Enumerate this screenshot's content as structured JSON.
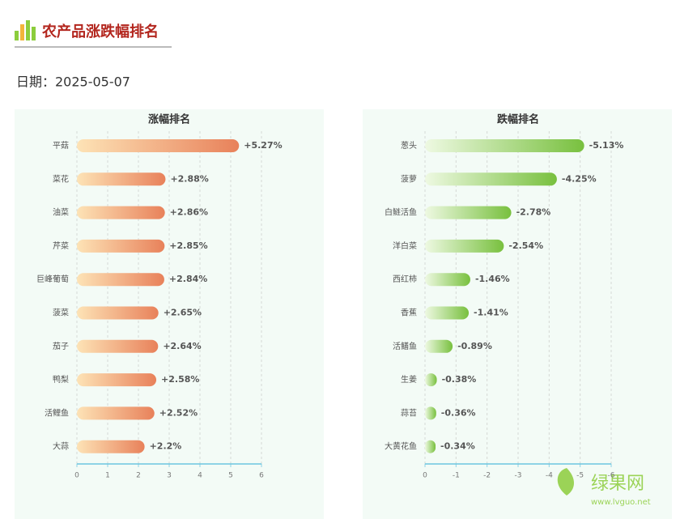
{
  "header": {
    "title": "农产品涨跌幅排名",
    "date": "日期：2025-05-07"
  },
  "watermark": {
    "name": "绿果网",
    "url": "www.lvguo.net"
  },
  "chart_data": [
    {
      "type": "bar",
      "orientation": "horizontal",
      "title": "涨幅排名",
      "categories": [
        "平菇",
        "菜花",
        "油菜",
        "芹菜",
        "巨峰葡萄",
        "菠菜",
        "茄子",
        "鸭梨",
        "活鲤鱼",
        "大蒜"
      ],
      "values": [
        5.27,
        2.88,
        2.86,
        2.85,
        2.84,
        2.65,
        2.64,
        2.58,
        2.52,
        2.2
      ],
      "value_labels": [
        "+5.27%",
        "+2.88%",
        "+2.86%",
        "+2.85%",
        "+2.84%",
        "+2.65%",
        "+2.64%",
        "+2.58%",
        "+2.52%",
        "+2.2%"
      ],
      "colors": [
        "#fde3b6",
        "#e8815a"
      ],
      "xlim": [
        0,
        6
      ],
      "xticks": [
        0,
        1,
        2,
        3,
        4,
        5,
        6
      ],
      "grid": true
    },
    {
      "type": "bar",
      "orientation": "horizontal",
      "title": "跌幅排名",
      "categories": [
        "葱头",
        "菠萝",
        "白鲢活鱼",
        "洋白菜",
        "西红柿",
        "香蕉",
        "活鳝鱼",
        "生姜",
        "蒜苔",
        "大黄花鱼"
      ],
      "values": [
        -5.13,
        -4.25,
        -2.78,
        -2.54,
        -1.46,
        -1.41,
        -0.89,
        -0.38,
        -0.36,
        -0.34
      ],
      "value_labels": [
        "-5.13%",
        "-4.25%",
        "-2.78%",
        "-2.54%",
        "-1.46%",
        "-1.41%",
        "-0.89%",
        "-0.38%",
        "-0.36%",
        "-0.34%"
      ],
      "colors": [
        "#eef9e2",
        "#78c03e"
      ],
      "xlim": [
        0,
        -6
      ],
      "xticks": [
        0,
        -1,
        -2,
        -3,
        -4,
        -5,
        -6
      ],
      "grid": true
    }
  ]
}
